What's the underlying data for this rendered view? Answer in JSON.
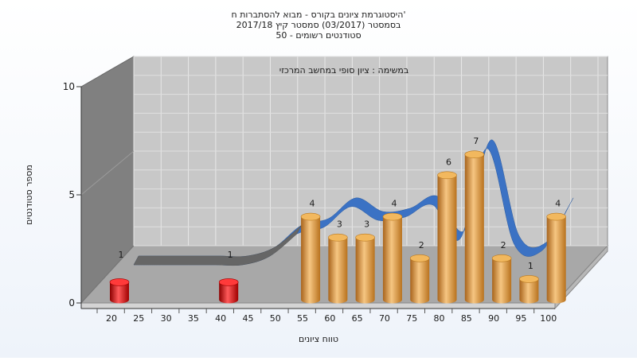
{
  "chart_data": {
    "type": "bar",
    "title_lines": [
      "היסטוגרמת ציונים בקורס - מבוא להסתברות ח'",
      "בסמסטר  (03/2017)  סמסטר קיץ  2017/18",
      "סטודנטים רשומים - 50"
    ],
    "subtitle": "במשימה : ציון סופי במחשב המרכזי",
    "xlabel": "טווח ציונים",
    "ylabel": "מספר סטודנטים",
    "categories": [
      "20",
      "25",
      "30",
      "35",
      "40",
      "45",
      "50",
      "55",
      "60",
      "65",
      "70",
      "75",
      "80",
      "85",
      "90",
      "95",
      "100"
    ],
    "values": [
      1,
      0,
      0,
      0,
      1,
      0,
      0,
      4,
      3,
      3,
      4,
      2,
      6,
      7,
      2,
      1,
      4
    ],
    "bar_labels": [
      "1",
      "",
      "",
      "",
      "1",
      "",
      "",
      "4",
      "3",
      "3",
      "4",
      "2",
      "6",
      "7",
      "2",
      "1",
      "4"
    ],
    "highlight_categories": [
      "20",
      "40"
    ],
    "ylim": [
      0,
      10
    ],
    "yticks": [
      "0",
      "5",
      "10"
    ],
    "series": [
      {
        "values": [
          1,
          0,
          0,
          0,
          1,
          0,
          0,
          4,
          3,
          3,
          4,
          2,
          6,
          7,
          2,
          1,
          4
        ],
        "color": "#e8a040"
      },
      {
        "type": "ribbon",
        "color": "#3b72c4",
        "dark_color": "#666666",
        "values": [
          1,
          1,
          1,
          1,
          1,
          1.5,
          2.8,
          3.2,
          4.4,
          3.6,
          3.8,
          4.5,
          2.5,
          7.8,
          2.2,
          1.8,
          4.4
        ]
      }
    ],
    "colors": {
      "bar_normal": "#e8a040",
      "bar_fail": "#dd1111",
      "back_wall": "#c8c8c8",
      "side_wall": "#808080",
      "floor": "#a8a8a8",
      "ribbon": "#3b72c4"
    },
    "grid": true,
    "legend": "none"
  }
}
